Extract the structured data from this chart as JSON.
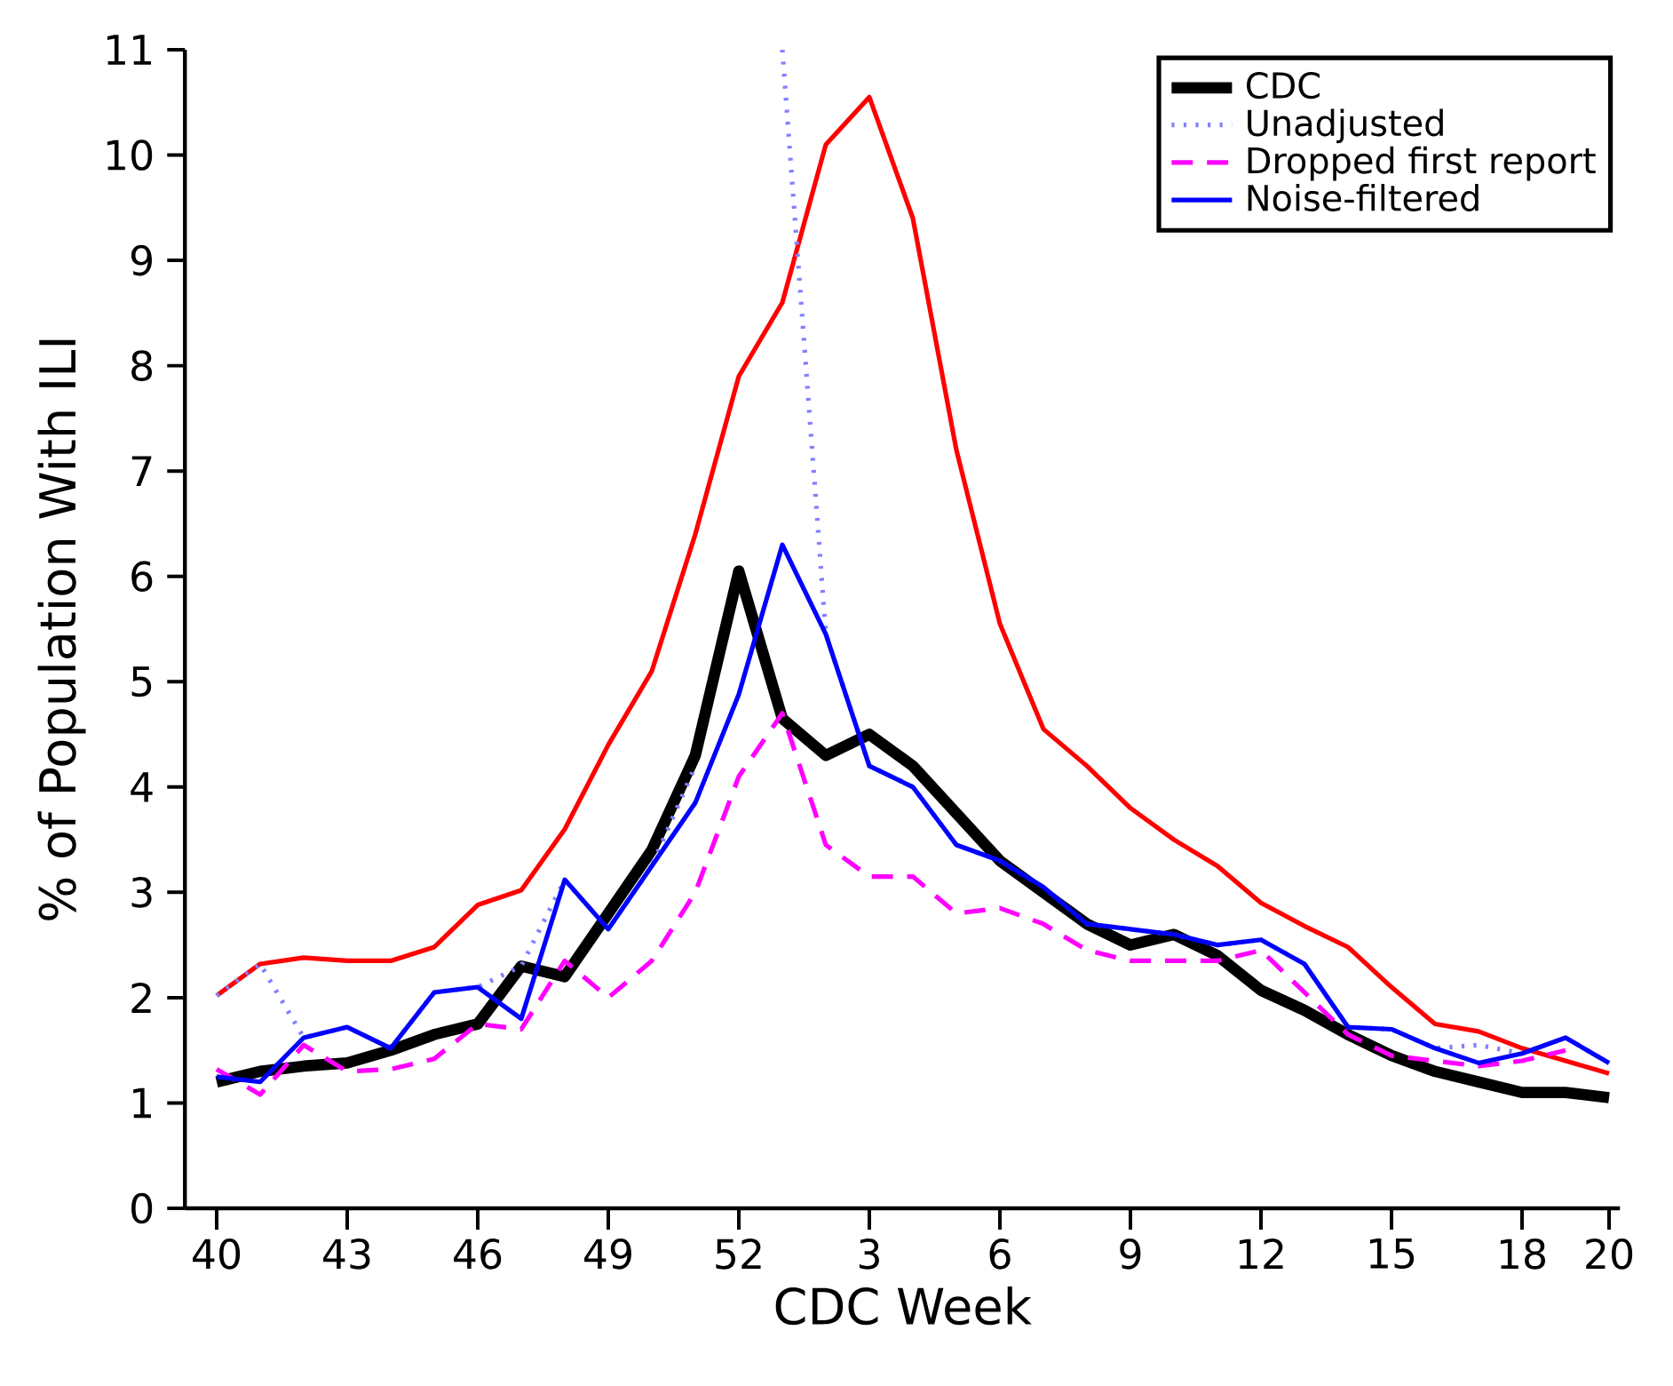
{
  "chart_data": {
    "type": "line",
    "xlabel": "CDC Week",
    "ylabel": "% of Population With ILI",
    "categories": [
      "40",
      null,
      null,
      "43",
      null,
      null,
      "46",
      null,
      null,
      "49",
      null,
      null,
      "52",
      null,
      null,
      "3",
      null,
      null,
      "6",
      null,
      null,
      "9",
      null,
      null,
      "12",
      null,
      null,
      "15",
      null,
      null,
      "18",
      null,
      "20"
    ],
    "ylim": [
      0,
      11
    ],
    "yticks": [
      0,
      1,
      2,
      3,
      4,
      5,
      6,
      7,
      8,
      9,
      10,
      11
    ],
    "legend": "top right",
    "grid": false,
    "marker": "none",
    "series": [
      {
        "name": "CDC",
        "color": "#000000",
        "line_style": "solid",
        "values": [
          1.2,
          1.3,
          1.35,
          1.38,
          1.5,
          1.65,
          1.75,
          2.3,
          2.2,
          2.8,
          3.4,
          4.3,
          6.05,
          4.65,
          4.3,
          4.5,
          4.2,
          3.75,
          3.3,
          3.0,
          2.7,
          2.5,
          2.6,
          2.4,
          2.07,
          1.88,
          1.65,
          1.45,
          1.3,
          1.2,
          1.1,
          1.1,
          1.05
        ]
      },
      {
        "color": "#ff0000",
        "line_style": "solid",
        "values": [
          2.02,
          2.32,
          2.38,
          2.35,
          2.35,
          2.48,
          2.88,
          3.02,
          3.6,
          4.4,
          5.1,
          6.4,
          7.9,
          8.6,
          10.1,
          10.55,
          9.4,
          7.2,
          5.55,
          4.55,
          4.2,
          3.8,
          3.5,
          3.25,
          2.9,
          2.68,
          2.48,
          2.1,
          1.75,
          1.68,
          1.52,
          1.4,
          1.28
        ]
      },
      {
        "name": "Unadjusted",
        "color": "#8080ff",
        "line_style": "dotted",
        "values": [
          2.02,
          2.32,
          1.62,
          1.72,
          1.52,
          2.05,
          2.1,
          2.3,
          3.12,
          2.65,
          3.25,
          4.2,
          null,
          11,
          5.45,
          4.2,
          4.0,
          3.45,
          3.3,
          3.05,
          2.7,
          2.65,
          2.6,
          2.5,
          2.55,
          2.32,
          1.72,
          1.7,
          1.52,
          1.55,
          1.47,
          1.62,
          1.38
        ]
      },
      {
        "name": "Dropped first report",
        "color": "#ff00ff",
        "line_style": "dashed",
        "values": [
          1.32,
          1.08,
          1.55,
          1.3,
          1.32,
          1.42,
          1.75,
          1.7,
          2.35,
          2.0,
          2.35,
          3.0,
          4.1,
          4.7,
          3.45,
          3.15,
          3.15,
          2.8,
          2.85,
          2.7,
          2.45,
          2.35,
          2.35,
          2.35,
          2.45,
          2.05,
          1.65,
          1.45,
          1.4,
          1.35,
          1.4,
          1.5,
          null
        ]
      },
      {
        "name": "Noise-filtered",
        "color": "#0000ff",
        "line_style": "solid",
        "values": [
          1.25,
          1.2,
          1.62,
          1.72,
          1.52,
          2.05,
          2.1,
          1.8,
          3.12,
          2.65,
          3.25,
          3.85,
          4.88,
          6.3,
          5.45,
          4.2,
          4.0,
          3.45,
          3.3,
          3.05,
          2.7,
          2.65,
          2.6,
          2.5,
          2.55,
          2.32,
          1.72,
          1.7,
          1.52,
          1.38,
          1.47,
          1.62,
          1.38
        ]
      }
    ]
  }
}
